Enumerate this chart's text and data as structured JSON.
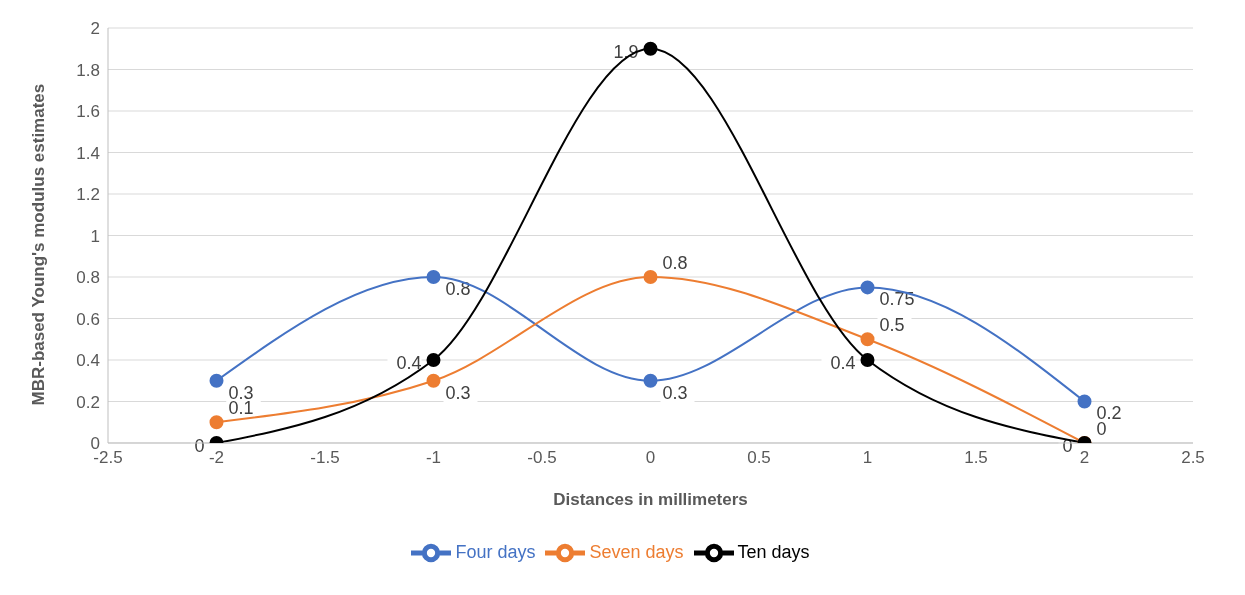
{
  "chart_data": {
    "type": "line",
    "xlabel": "Distances in millimeters",
    "ylabel": "MBR-based Young's modulus estimates",
    "x": [
      -2,
      -1,
      0,
      1,
      2
    ],
    "series": [
      {
        "name": "Four days",
        "color": "#4472c4",
        "values": [
          0.3,
          0.8,
          0.3,
          0.75,
          0.2
        ]
      },
      {
        "name": "Seven days",
        "color": "#ed7d31",
        "values": [
          0.1,
          0.3,
          0.8,
          0.5,
          0
        ]
      },
      {
        "name": "Ten days",
        "color": "#000000",
        "values": [
          0,
          0.4,
          1.9,
          0.4,
          0
        ]
      }
    ],
    "xlim": [
      -2.5,
      2.5
    ],
    "xticks": [
      -2.5,
      -2,
      -1.5,
      -1,
      -0.5,
      0,
      0.5,
      1,
      1.5,
      2,
      2.5
    ],
    "ylim": [
      0,
      2
    ],
    "yticks": [
      0,
      0.2,
      0.4,
      0.6,
      0.8,
      1,
      1.2,
      1.4,
      1.6,
      1.8,
      2
    ],
    "grid": "y",
    "legend": "bottom",
    "marker": "circle",
    "line_style": "solid",
    "data_labels": true
  }
}
